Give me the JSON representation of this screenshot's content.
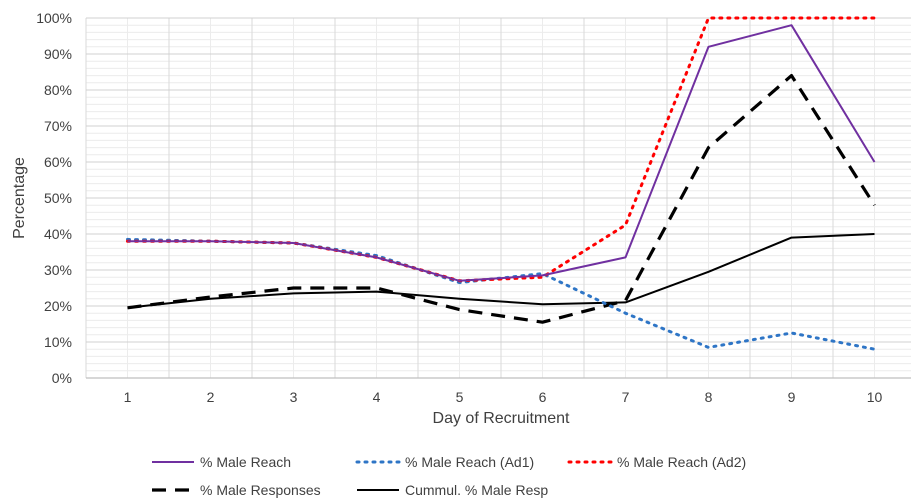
{
  "chart_data": {
    "type": "line",
    "xlabel": "Day of Recruitment",
    "ylabel": "Percentage",
    "x": [
      1,
      2,
      3,
      4,
      5,
      6,
      7,
      8,
      9,
      10
    ],
    "x_tick_labels": [
      "1",
      "2",
      "3",
      "4",
      "5",
      "6",
      "7",
      "8",
      "9",
      "10"
    ],
    "ylim": [
      0,
      100
    ],
    "y_tick_labels": [
      "0%",
      "10%",
      "20%",
      "30%",
      "40%",
      "50%",
      "60%",
      "70%",
      "80%",
      "90%",
      "100%"
    ],
    "grid": true,
    "legend_position": "bottom",
    "series": [
      {
        "name": "% Male Reach",
        "color": "#7030a0",
        "style": "solid",
        "values": [
          38,
          38,
          37.5,
          33.5,
          27,
          28.5,
          33.5,
          92,
          98,
          60
        ]
      },
      {
        "name": "% Male Reach (Ad1)",
        "color": "#2e75c6",
        "style": "dotted",
        "values": [
          38.5,
          38,
          37.5,
          34,
          26.5,
          29,
          18,
          8.5,
          12.5,
          8
        ]
      },
      {
        "name": "% Male Reach (Ad2)",
        "color": "#ff0000",
        "style": "dotted",
        "values": [
          38,
          38,
          37.5,
          33.5,
          27,
          28,
          42.5,
          100,
          100,
          100
        ]
      },
      {
        "name": "% Male Responses",
        "color": "#000000",
        "style": "dashed",
        "values": [
          19.5,
          22.5,
          25,
          25,
          19,
          15.5,
          21.5,
          64,
          84,
          48
        ]
      },
      {
        "name": "Cummul. % Male Resp",
        "color": "#000000",
        "style": "solid",
        "values": [
          19.5,
          22,
          23.5,
          24,
          22,
          20.5,
          21,
          29.5,
          39,
          40
        ]
      }
    ]
  }
}
